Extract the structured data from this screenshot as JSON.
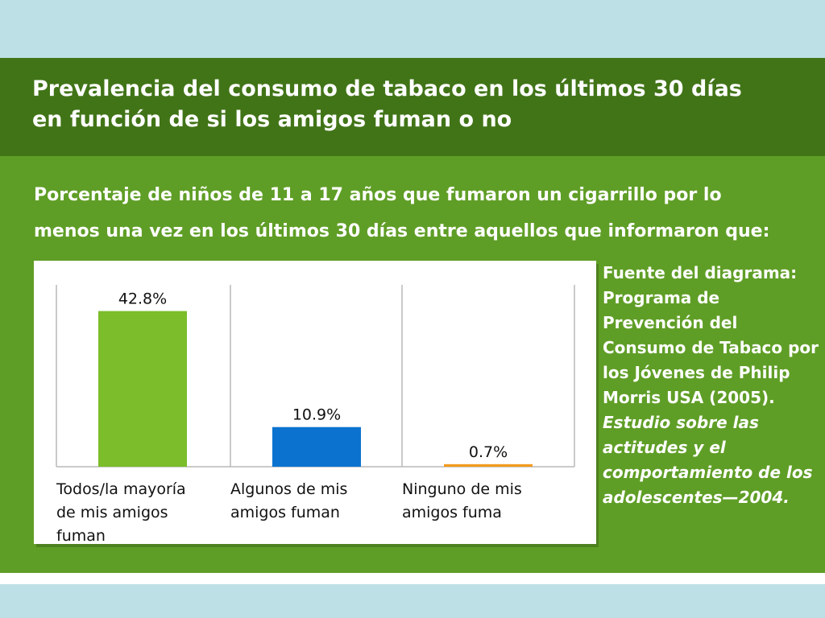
{
  "header": {
    "title": "Prevalencia del consumo de tabaco en los últimos 30 días\nen función de si los amigos fuman o no",
    "subtitle": "Porcentaje de niños de 11 a 17 años que fumaron un cigarrillo por lo\nmenos una vez en los últimos 30 días entre aquellos que informaron que:"
  },
  "source": {
    "plain": "Fuente del diagrama: Programa de Prevención del Consumo de Tabaco por los Jóvenes de Philip Morris USA (2005). ",
    "italic": "Estudio sobre las actitudes y el comportamiento de los adolescentes—2004."
  },
  "colors": {
    "background": "#bde0e6",
    "card": "#5f9e26",
    "header": "#417417",
    "bar1": "#7bbd2a",
    "bar2": "#0b73cf",
    "bar3": "#f39a1d"
  },
  "chart_data": {
    "type": "bar",
    "categories": [
      [
        "Todos/la mayoría",
        "de mis amigos",
        "fuman"
      ],
      [
        "Algunos de mis",
        "amigos fuman"
      ],
      [
        "Ninguno de mis",
        "amigos fuma"
      ]
    ],
    "values": [
      42.8,
      10.9,
      0.7
    ],
    "value_labels": [
      "42.8%",
      "10.9%",
      "0.7%"
    ],
    "bar_colors": [
      "#7bbd2a",
      "#0b73cf",
      "#f39a1d"
    ],
    "ylim": [
      0,
      50
    ],
    "grid": false,
    "legend": "none"
  }
}
